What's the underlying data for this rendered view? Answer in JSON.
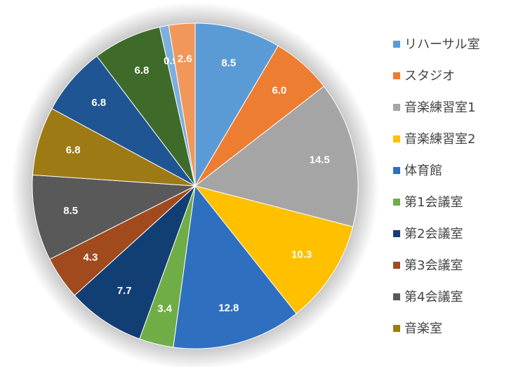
{
  "chart_data": {
    "type": "pie",
    "categories": [
      "リハーサル室",
      "スタジオ",
      "音楽練習室1",
      "音楽練習室2",
      "体育館",
      "第1会議室",
      "第2会議室",
      "第3会議室",
      "第4会議室",
      "音楽室",
      null,
      null,
      null,
      null
    ],
    "values": [
      8.5,
      6.0,
      14.5,
      10.3,
      12.8,
      3.4,
      7.7,
      4.3,
      8.5,
      6.8,
      6.8,
      6.8,
      0.9,
      2.6
    ],
    "value_labels": [
      "8.5",
      "6.0",
      "14.5",
      "10.3",
      "12.8",
      "3.4",
      "7.7",
      "4.3",
      "8.5",
      "6.8",
      "6.8",
      "6.8",
      "0.9",
      "2.6"
    ],
    "colors": [
      "#5b9bd5",
      "#ed7d31",
      "#a5a5a5",
      "#ffc000",
      "#2f6fbf",
      "#70ad47",
      "#123f73",
      "#a04a1e",
      "#595959",
      "#9e7a14",
      "#1f5592",
      "#3f6b2a",
      "#7cafdd",
      "#f1975a"
    ],
    "legend": "right"
  }
}
